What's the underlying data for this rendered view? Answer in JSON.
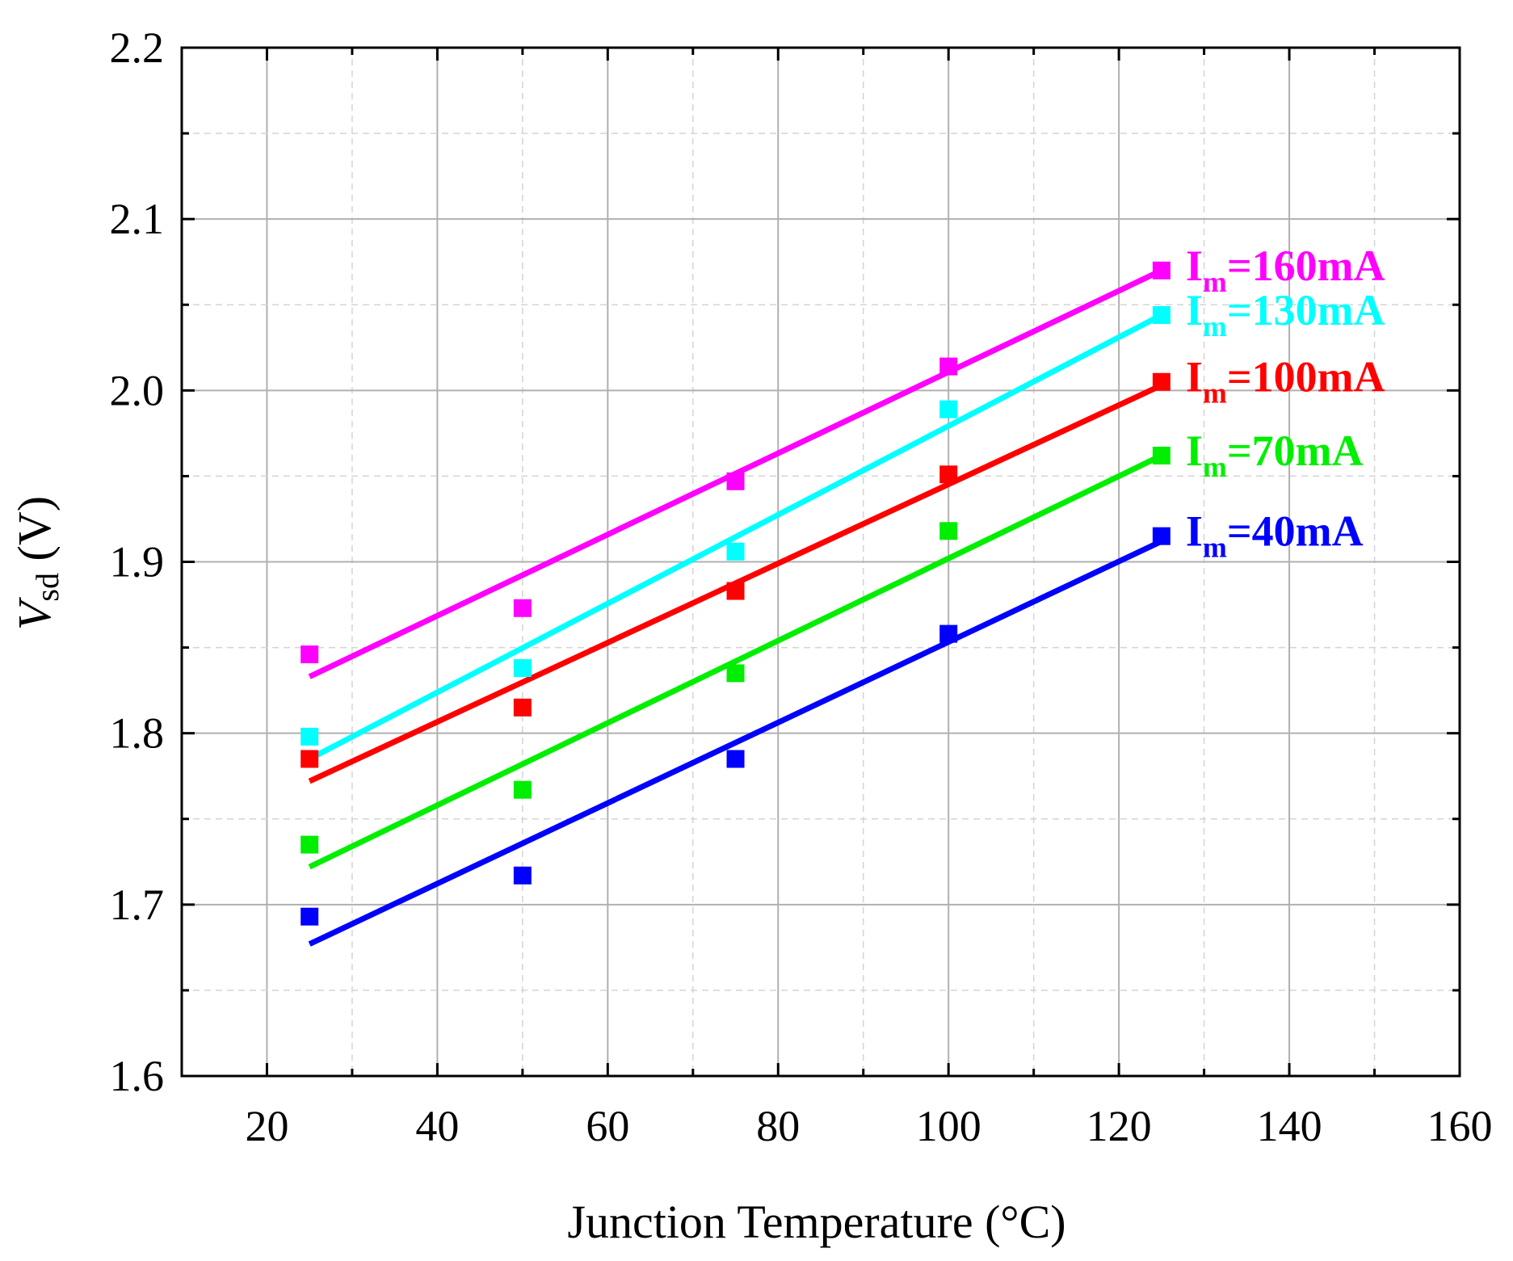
{
  "chart_data": {
    "type": "scatter",
    "title": "",
    "xlabel": "Junction Temperature (°C)",
    "ylabel_main": "V",
    "ylabel_sub": "sd",
    "ylabel_unit": " (V)",
    "xlim": [
      10,
      160
    ],
    "ylim": [
      1.6,
      2.2
    ],
    "xticks": [
      20,
      40,
      60,
      80,
      100,
      120,
      140,
      160
    ],
    "yticks": [
      1.6,
      1.7,
      1.8,
      1.9,
      2.0,
      2.1,
      2.2
    ],
    "xtick_labels": [
      "20",
      "40",
      "60",
      "80",
      "100",
      "120",
      "140",
      "160"
    ],
    "ytick_labels": [
      "1.6",
      "1.7",
      "1.8",
      "1.9",
      "2.0",
      "2.1",
      "2.2"
    ],
    "grid": true,
    "x": [
      25,
      50,
      75,
      100,
      125
    ],
    "series": [
      {
        "name": "Im=160mA",
        "label_main": "I",
        "label_sub": "m",
        "label_rest": "=160mA",
        "color": "#ff00ff",
        "values": [
          1.846,
          1.873,
          1.947,
          2.014,
          2.07
        ],
        "fit": [
          1.833,
          2.07
        ]
      },
      {
        "name": "Im=130mA",
        "label_main": "I",
        "label_sub": "m",
        "label_rest": "=130mA",
        "color": "#00ffff",
        "values": [
          1.798,
          1.838,
          1.906,
          1.989,
          2.044
        ],
        "fit": [
          1.785,
          2.044
        ]
      },
      {
        "name": "Im=100mA",
        "label_main": "I",
        "label_sub": "m",
        "label_rest": "=100mA",
        "color": "#ff0000",
        "values": [
          1.785,
          1.815,
          1.883,
          1.951,
          2.005
        ],
        "fit": [
          1.772,
          2.003
        ]
      },
      {
        "name": "Im=70mA",
        "label_main": "I",
        "label_sub": "m",
        "label_rest": "=70mA",
        "color": "#00ee00",
        "values": [
          1.735,
          1.767,
          1.835,
          1.918,
          1.962
        ],
        "fit": [
          1.722,
          1.962
        ]
      },
      {
        "name": "Im=40mA",
        "label_main": "I",
        "label_sub": "m",
        "label_rest": "=40mA",
        "color": "#0000ff",
        "values": [
          1.693,
          1.717,
          1.785,
          1.858,
          1.915
        ],
        "fit": [
          1.677,
          1.912
        ]
      }
    ]
  }
}
